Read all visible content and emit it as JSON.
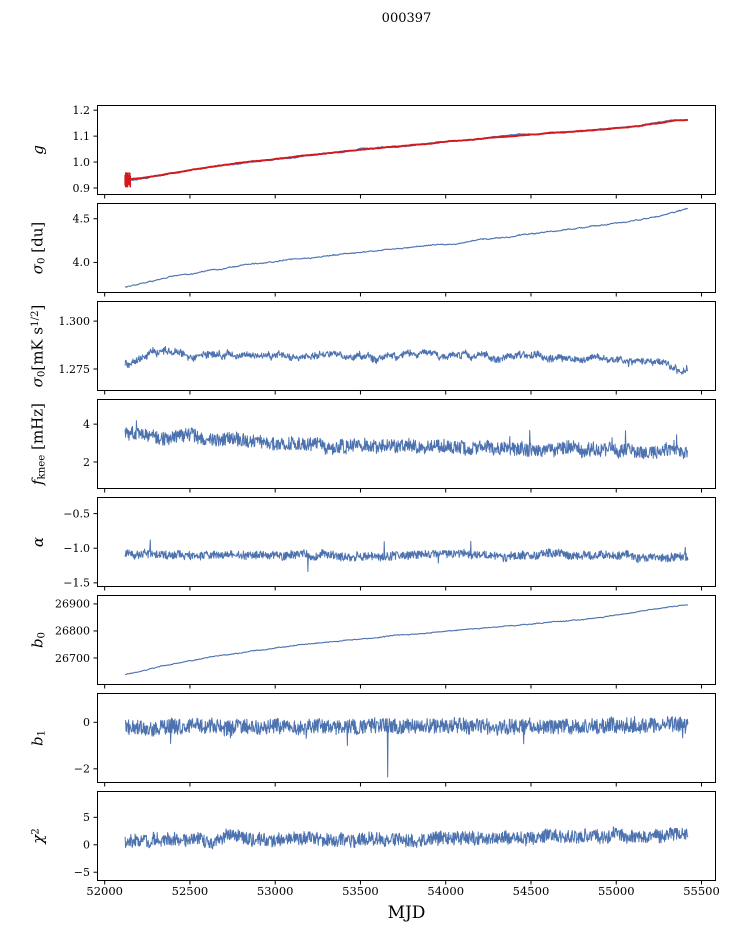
{
  "title": "000397",
  "xlabel": "MJD",
  "colors": {
    "line": "#4c72b0",
    "fit": "#d2191d",
    "axis": "#000000",
    "background": "#ffffff"
  },
  "x": {
    "lim": [
      51955,
      55585
    ],
    "data_range": [
      52120,
      55420
    ],
    "ticks": [
      {
        "v": 52000,
        "l": "52000"
      },
      {
        "v": 52500,
        "l": "52500"
      },
      {
        "v": 53000,
        "l": "53000"
      },
      {
        "v": 53500,
        "l": "53500"
      },
      {
        "v": 54000,
        "l": "54000"
      },
      {
        "v": 54500,
        "l": "54500"
      },
      {
        "v": 55000,
        "l": "55000"
      },
      {
        "v": 55500,
        "l": "55500"
      }
    ]
  },
  "chart_data": [
    {
      "id": "g",
      "type": "line",
      "ylabel_text": "g",
      "label": [
        {
          "t": "g",
          "s": "i"
        }
      ],
      "ylim": [
        0.873,
        1.22
      ],
      "yticks": [
        {
          "v": 0.9,
          "l": "0.9"
        },
        {
          "v": 1.0,
          "l": "1.0"
        },
        {
          "v": 1.1,
          "l": "1.1"
        },
        {
          "v": 1.2,
          "l": "1.2"
        }
      ],
      "series": [
        {
          "name": "gain-data",
          "color": "#4c72b0",
          "width": 1.2,
          "n": 900,
          "seed": 101,
          "noise": 0.0012,
          "wander": 0.004,
          "trend": [
            [
              52120,
              0.931
            ],
            [
              52250,
              0.941
            ],
            [
              52400,
              0.958
            ],
            [
              52550,
              0.975
            ],
            [
              52700,
              0.99
            ],
            [
              52850,
              1.0
            ],
            [
              53000,
              1.013
            ],
            [
              53250,
              1.03
            ],
            [
              53500,
              1.048
            ],
            [
              53750,
              1.062
            ],
            [
              54000,
              1.078
            ],
            [
              54250,
              1.093
            ],
            [
              54500,
              1.107
            ],
            [
              54750,
              1.118
            ],
            [
              55000,
              1.13
            ],
            [
              55150,
              1.14
            ],
            [
              55250,
              1.15
            ],
            [
              55350,
              1.161
            ],
            [
              55420,
              1.162
            ]
          ]
        },
        {
          "name": "gain-fit",
          "color": "#d2191d",
          "width": 1.9,
          "n": 800,
          "seed": 102,
          "noise": 0.0006,
          "wander": 0.0018,
          "trend": [
            [
              52120,
              0.931
            ],
            [
              52250,
              0.941
            ],
            [
              52400,
              0.958
            ],
            [
              52550,
              0.975
            ],
            [
              52700,
              0.99
            ],
            [
              52850,
              1.0
            ],
            [
              53000,
              1.013
            ],
            [
              53250,
              1.03
            ],
            [
              53500,
              1.048
            ],
            [
              53750,
              1.062
            ],
            [
              54000,
              1.078
            ],
            [
              54250,
              1.093
            ],
            [
              54500,
              1.107
            ],
            [
              54750,
              1.118
            ],
            [
              55000,
              1.13
            ],
            [
              55150,
              1.14
            ],
            [
              55250,
              1.15
            ],
            [
              55350,
              1.161
            ],
            [
              55420,
              1.162
            ]
          ]
        }
      ],
      "errorbars": {
        "color": "#d2191d",
        "seed": 103,
        "n": 16,
        "x0": 52118,
        "x1": 52152,
        "y0": 0.902,
        "y1": 0.962
      }
    },
    {
      "id": "sigma0-du",
      "type": "line",
      "ylabel_text": "sigma0 [du]",
      "label": [
        {
          "t": "σ",
          "s": "i"
        },
        {
          "t": "0",
          "s": "sub"
        },
        {
          "t": " [du]",
          "s": "n"
        }
      ],
      "ylim": [
        3.65,
        4.68
      ],
      "yticks": [
        {
          "v": 4.0,
          "l": "4.0"
        },
        {
          "v": 4.5,
          "l": "4.5"
        }
      ],
      "series": [
        {
          "name": "sigma0-du",
          "color": "#4c72b0",
          "width": 1.1,
          "n": 900,
          "seed": 201,
          "noise": 0.004,
          "wander": 0.012,
          "trend": [
            [
              52120,
              3.72
            ],
            [
              52250,
              3.775
            ],
            [
              52400,
              3.835
            ],
            [
              52550,
              3.885
            ],
            [
              52700,
              3.93
            ],
            [
              52900,
              3.985
            ],
            [
              53100,
              4.03
            ],
            [
              53300,
              4.075
            ],
            [
              53500,
              4.12
            ],
            [
              53700,
              4.155
            ],
            [
              54000,
              4.215
            ],
            [
              54300,
              4.28
            ],
            [
              54600,
              4.35
            ],
            [
              54900,
              4.425
            ],
            [
              55100,
              4.48
            ],
            [
              55250,
              4.53
            ],
            [
              55420,
              4.61
            ]
          ]
        }
      ]
    },
    {
      "id": "sigma0-mk",
      "type": "line",
      "ylabel_text": "sigma0 [mK s^(1/2)]",
      "label": [
        {
          "t": "σ",
          "s": "i"
        },
        {
          "t": "0",
          "s": "sub"
        },
        {
          "t": "[mK s",
          "s": "n"
        },
        {
          "t": "1/2",
          "s": "sup"
        },
        {
          "t": "]",
          "s": "n"
        }
      ],
      "ylim": [
        1.2635,
        1.3105
      ],
      "yticks": [
        {
          "v": 1.275,
          "l": "1.275"
        },
        {
          "v": 1.3,
          "l": "1.300"
        }
      ],
      "series": [
        {
          "name": "sigma0-mk",
          "color": "#4c72b0",
          "width": 1.0,
          "n": 1300,
          "seed": 301,
          "noise": 0.0016,
          "wander": 0.0022,
          "trend": [
            [
              52120,
              1.2775
            ],
            [
              52200,
              1.282
            ],
            [
              52280,
              1.2862
            ],
            [
              52380,
              1.2855
            ],
            [
              52500,
              1.2818
            ],
            [
              52650,
              1.283
            ],
            [
              52800,
              1.2812
            ],
            [
              53000,
              1.2825
            ],
            [
              53200,
              1.2812
            ],
            [
              53400,
              1.2822
            ],
            [
              53600,
              1.2808
            ],
            [
              53800,
              1.2818
            ],
            [
              54000,
              1.2806
            ],
            [
              54200,
              1.2818
            ],
            [
              54400,
              1.281
            ],
            [
              54600,
              1.2802
            ],
            [
              54800,
              1.2815
            ],
            [
              55000,
              1.28
            ],
            [
              55150,
              1.2795
            ],
            [
              55280,
              1.2778
            ],
            [
              55420,
              1.2752
            ]
          ]
        }
      ]
    },
    {
      "id": "fknee",
      "type": "line",
      "ylabel_text": "f_knee [mHz]",
      "label": [
        {
          "t": "f",
          "s": "i"
        },
        {
          "t": "knee",
          "s": "sub"
        },
        {
          "t": " [mHz]",
          "s": "n"
        }
      ],
      "ylim": [
        0.57,
        5.33
      ],
      "yticks": [
        {
          "v": 2,
          "l": "2"
        },
        {
          "v": 4,
          "l": "4"
        }
      ],
      "series": [
        {
          "name": "fknee",
          "color": "#4c72b0",
          "width": 1.0,
          "n": 1300,
          "seed": 401,
          "noise": 0.35,
          "wander": 0.16,
          "spike": {
            "prob": 0.012,
            "amp": 1.2,
            "bias": "pos"
          },
          "trend": [
            [
              52120,
              3.55
            ],
            [
              52300,
              3.45
            ],
            [
              52500,
              3.3
            ],
            [
              52700,
              3.1
            ],
            [
              52900,
              3.0
            ],
            [
              53200,
              2.92
            ],
            [
              53600,
              2.86
            ],
            [
              54000,
              2.82
            ],
            [
              54400,
              2.76
            ],
            [
              54800,
              2.72
            ],
            [
              55200,
              2.66
            ],
            [
              55420,
              2.58
            ]
          ]
        }
      ]
    },
    {
      "id": "alpha",
      "type": "line",
      "ylabel_text": "alpha",
      "label": [
        {
          "t": "α",
          "s": "i"
        }
      ],
      "ylim": [
        -1.56,
        -0.26
      ],
      "yticks": [
        {
          "v": -1.5,
          "l": "−1.5"
        },
        {
          "v": -1.0,
          "l": "−1.0"
        },
        {
          "v": -0.5,
          "l": "−0.5"
        }
      ],
      "series": [
        {
          "name": "alpha",
          "color": "#4c72b0",
          "width": 1.0,
          "n": 1300,
          "seed": 501,
          "noise": 0.06,
          "wander": 0.025,
          "spike": {
            "prob": 0.008,
            "amp": 0.22,
            "bias": "sym"
          },
          "trend": [
            [
              52120,
              -1.09
            ],
            [
              53000,
              -1.12
            ],
            [
              54000,
              -1.1
            ],
            [
              55420,
              -1.12
            ]
          ]
        }
      ]
    },
    {
      "id": "b0",
      "type": "line",
      "ylabel_text": "b0",
      "label": [
        {
          "t": "b",
          "s": "i"
        },
        {
          "t": "0",
          "s": "sub"
        }
      ],
      "ylim": [
        26600,
        26933
      ],
      "yticks": [
        {
          "v": 26700,
          "l": "26700"
        },
        {
          "v": 26800,
          "l": "26800"
        },
        {
          "v": 26900,
          "l": "26900"
        }
      ],
      "series": [
        {
          "name": "b0",
          "color": "#4c72b0",
          "width": 1.1,
          "n": 700,
          "seed": 601,
          "noise": 1.2,
          "wander": 2.5,
          "trend": [
            [
              52120,
              26638
            ],
            [
              52350,
              26672
            ],
            [
              52600,
              26700
            ],
            [
              52850,
              26722
            ],
            [
              53100,
              26742
            ],
            [
              53350,
              26760
            ],
            [
              53600,
              26778
            ],
            [
              53900,
              26793
            ],
            [
              54200,
              26808
            ],
            [
              54500,
              26824
            ],
            [
              54800,
              26843
            ],
            [
              55000,
              26858
            ],
            [
              55150,
              26872
            ],
            [
              55300,
              26888
            ],
            [
              55420,
              26897
            ]
          ]
        }
      ]
    },
    {
      "id": "b1",
      "type": "line",
      "ylabel_text": "b1",
      "label": [
        {
          "t": "b",
          "s": "i"
        },
        {
          "t": "1",
          "s": "sub"
        }
      ],
      "ylim": [
        -2.61,
        1.26
      ],
      "yticks": [
        {
          "v": -2,
          "l": "−2"
        },
        {
          "v": 0,
          "l": "0"
        }
      ],
      "series": [
        {
          "name": "b1",
          "color": "#4c72b0",
          "width": 1.0,
          "n": 1300,
          "seed": 701,
          "noise": 0.33,
          "wander": 0.09,
          "spike": {
            "prob": 0.009,
            "amp": 0.75,
            "bias": "neg"
          },
          "outliers": [
            [
              53660,
              -2.35
            ]
          ],
          "trend": [
            [
              52120,
              -0.15
            ],
            [
              53000,
              -0.2
            ],
            [
              54000,
              -0.18
            ],
            [
              55420,
              -0.15
            ]
          ]
        }
      ]
    },
    {
      "id": "chi2",
      "type": "line",
      "ylabel_text": "chi^2",
      "label": [
        {
          "t": "χ",
          "s": "i"
        },
        {
          "t": "2",
          "s": "sup"
        }
      ],
      "ylim": [
        -6.6,
        9.8
      ],
      "yticks": [
        {
          "v": -5,
          "l": "−5"
        },
        {
          "v": 0,
          "l": "0"
        },
        {
          "v": 5,
          "l": "5"
        }
      ],
      "series": [
        {
          "name": "chi2",
          "color": "#4c72b0",
          "width": 1.0,
          "n": 1300,
          "seed": 801,
          "noise": 1.2,
          "wander": 0.55,
          "spike": {
            "prob": 0.006,
            "amp": 2.0,
            "bias": "sym"
          },
          "trend": [
            [
              52120,
              0.6
            ],
            [
              52600,
              0.8
            ],
            [
              53200,
              0.9
            ],
            [
              53800,
              0.9
            ],
            [
              54300,
              1.1
            ],
            [
              54800,
              1.5
            ],
            [
              55200,
              1.4
            ],
            [
              55420,
              1.6
            ]
          ]
        }
      ]
    }
  ]
}
